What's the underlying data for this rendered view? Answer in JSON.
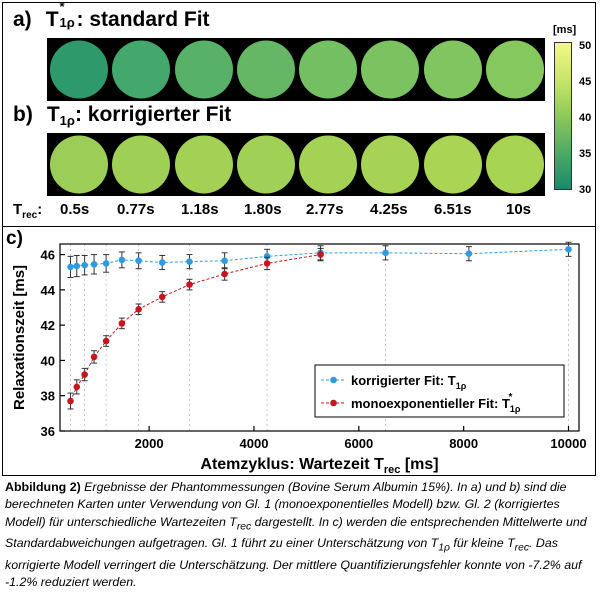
{
  "panel_a": {
    "label": "a)",
    "title_base": "T",
    "title_sub": "1ρ",
    "title_sup": "*",
    "title_text": ": standard Fit"
  },
  "panel_b": {
    "label": "b)",
    "title_base": "T",
    "title_sub": "1ρ",
    "title_text": ": korrigierter Fit"
  },
  "trec": {
    "label_base": "T",
    "label_sub": "rec",
    "label_suffix": ":",
    "values": [
      "0.5s",
      "0.77s",
      "1.18s",
      "1.80s",
      "2.77s",
      "4.25s",
      "6.51s",
      "10s"
    ]
  },
  "maps": {
    "standard_fit_colors": [
      "#2e9a6b",
      "#44a86c",
      "#57b168",
      "#66b765",
      "#74bf62",
      "#7bc260",
      "#80c55f",
      "#85c85e"
    ],
    "corrected_fit_colors": [
      "#9ccd57",
      "#a0cf56",
      "#a2d156",
      "#a1d056",
      "#a4d255",
      "#a6d355",
      "#a9d454",
      "#a8d454"
    ]
  },
  "colorbar": {
    "unit": "[ms]",
    "ticks": [
      "50",
      "45",
      "40",
      "35",
      "30"
    ],
    "min": 30,
    "max": 50,
    "top_color": "#f4f78a",
    "bottom_color": "#1a8a6a"
  },
  "panel_c": {
    "label": "c)"
  },
  "chart_data": {
    "type": "scatter",
    "xlabel_base": "Atemzyklus: Wartezeit T",
    "xlabel_sub": "rec",
    "xlabel_suffix": " [ms]",
    "ylabel": "Relaxationszeit [ms]",
    "xlim": [
      300,
      10200
    ],
    "ylim": [
      36,
      46.6
    ],
    "xticks": [
      2000,
      4000,
      6000,
      8000,
      10000
    ],
    "yticks": [
      36,
      38,
      40,
      42,
      44,
      46
    ],
    "x_gridlines": [
      500,
      770,
      1180,
      1800,
      2770,
      4250,
      6510,
      10000
    ],
    "series": [
      {
        "name": "korrigierter Fit: T",
        "name_sub": "1ρ",
        "color": "#2f9be0",
        "x": [
          500,
          620,
          770,
          950,
          1180,
          1480,
          1800,
          2250,
          2770,
          3440,
          4250,
          5270,
          6510,
          8100,
          10000
        ],
        "y": [
          45.3,
          45.35,
          45.4,
          45.45,
          45.5,
          45.7,
          45.65,
          45.55,
          45.6,
          45.65,
          45.9,
          46.1,
          46.1,
          46.05,
          46.3
        ],
        "err": [
          0.6,
          0.6,
          0.55,
          0.55,
          0.5,
          0.45,
          0.45,
          0.4,
          0.4,
          0.45,
          0.4,
          0.4,
          0.4,
          0.4,
          0.4
        ]
      },
      {
        "name": "monoexponentieller Fit: T",
        "name_sub": "1ρ",
        "name_sup": "*",
        "color": "#c4161c",
        "x": [
          500,
          620,
          770,
          950,
          1180,
          1480,
          1800,
          2250,
          2770,
          3440,
          4250,
          5270
        ],
        "y": [
          37.7,
          38.5,
          39.2,
          40.2,
          41.1,
          42.1,
          42.9,
          43.6,
          44.3,
          44.9,
          45.5,
          46.0
        ],
        "err": [
          0.45,
          0.4,
          0.35,
          0.35,
          0.3,
          0.3,
          0.3,
          0.3,
          0.3,
          0.35,
          0.35,
          0.35
        ]
      }
    ],
    "legend_position": "lower-right"
  },
  "caption": {
    "bold": "Abbildung 2)",
    "text": "Ergebnisse der Phantommessungen (Bovine Serum Albumin 15%). In a) und b) sind die berechneten Karten unter Verwendung von Gl. 1 (monoexponentielles Modell) bzw. Gl. 2 (korrigiertes Modell) für unterschiedliche Wartezeiten T",
    "sub1": "rec",
    "text2": " dargestellt. In c) werden die entsprechenden Mittelwerte und Standardabweichungen aufgetragen. Gl. 1 führt zu einer Unterschätzung von T",
    "sub2": "1ρ",
    "text3": " für kleine T",
    "sub3": "rec",
    "text4": ". Das korrigierte Modell verringert die Unterschätzung. Der mittlere Quantifizierungsfehler konnte von -7.2% auf -1.2% reduziert werden."
  }
}
